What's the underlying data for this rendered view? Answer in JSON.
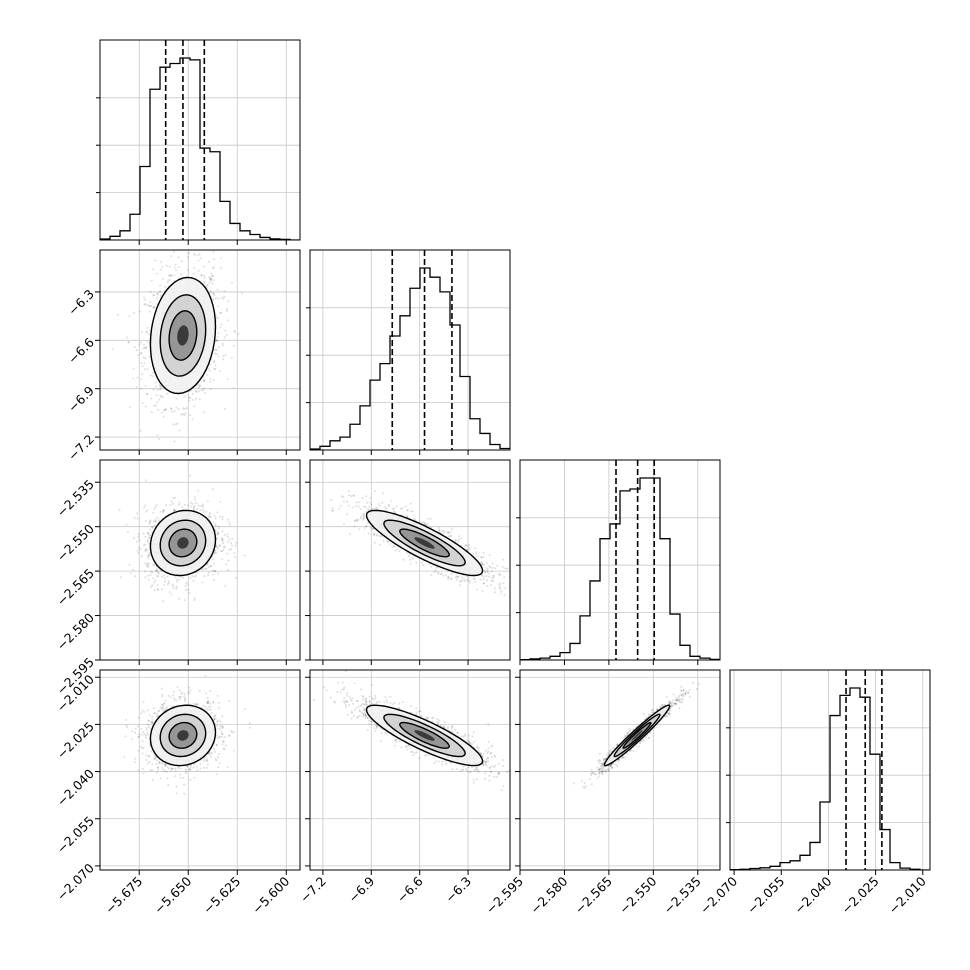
{
  "chart_data": {
    "type": "corner",
    "n_params": 4,
    "title": "",
    "xlabel": "",
    "ylabel": "",
    "grid": true,
    "params": [
      {
        "range": [
          -5.695,
          -5.593
        ],
        "ticks": [
          -5.675,
          -5.65,
          -5.625,
          -5.6
        ],
        "tick_labels": [
          "−5.675",
          "−5.650",
          "−5.625",
          "−5.600"
        ],
        "quantiles": [
          -5.6615,
          -5.6527,
          -5.6418
        ],
        "mean": -5.6527,
        "std": 0.0083,
        "hist": [
          0.005,
          0.02,
          0.05,
          0.14,
          0.4,
          0.82,
          0.94,
          0.96,
          0.99,
          0.98,
          0.5,
          0.48,
          0.21,
          0.09,
          0.05,
          0.03,
          0.014,
          0.006,
          0.003,
          0
        ]
      },
      {
        "range": [
          -7.28,
          -6.04
        ],
        "ticks": [
          -7.2,
          -6.9,
          -6.6,
          -6.3
        ],
        "tick_labels": [
          "−7.2",
          "−6.9",
          "−6.6",
          "−6.3"
        ],
        "quantiles": [
          -6.77,
          -6.57,
          -6.4
        ],
        "mean": -6.57,
        "std": 0.18,
        "hist": [
          0.005,
          0.02,
          0.05,
          0.07,
          0.14,
          0.24,
          0.38,
          0.47,
          0.62,
          0.73,
          0.88,
          0.99,
          0.94,
          0.86,
          0.68,
          0.4,
          0.17,
          0.09,
          0.03,
          0.008
        ]
      },
      {
        "range": [
          -2.595,
          -2.5275
        ],
        "ticks": [
          -2.595,
          -2.58,
          -2.565,
          -2.55,
          -2.535
        ],
        "tick_labels": [
          "−2.595",
          "−2.580",
          "−2.565",
          "−2.550",
          "−2.535"
        ],
        "quantiles": [
          -2.5626,
          -2.5553,
          -2.5497
        ],
        "mean": -2.5555,
        "std": 0.0055,
        "hist": [
          0.002,
          0.006,
          0.01,
          0.02,
          0.04,
          0.09,
          0.24,
          0.43,
          0.66,
          0.74,
          0.92,
          0.93,
          0.99,
          0.99,
          0.66,
          0.25,
          0.08,
          0.02,
          0.01,
          0.003
        ]
      },
      {
        "range": [
          -2.0713,
          -2.0077
        ],
        "ticks": [
          -2.07,
          -2.055,
          -2.04,
          -2.025,
          -2.01
        ],
        "tick_labels": [
          "−2.070",
          "−2.055",
          "−2.040",
          "−2.025",
          "−2.010"
        ],
        "quantiles": [
          -2.0344,
          -2.0283,
          -2.023
        ],
        "mean": -2.0285,
        "std": 0.0048,
        "hist": [
          0.002,
          0.004,
          0.008,
          0.012,
          0.02,
          0.04,
          0.05,
          0.08,
          0.15,
          0.37,
          0.84,
          0.95,
          0.99,
          0.94,
          0.63,
          0.22,
          0.04,
          0.01,
          0.004,
          0
        ]
      }
    ],
    "correlations": [
      [
        1,
        0.15,
        0.1,
        0.1
      ],
      [
        0.15,
        1,
        -0.85,
        -0.85
      ],
      [
        0.1,
        -0.85,
        1,
        0.97
      ],
      [
        0.1,
        -0.85,
        0.97,
        1
      ]
    ]
  }
}
